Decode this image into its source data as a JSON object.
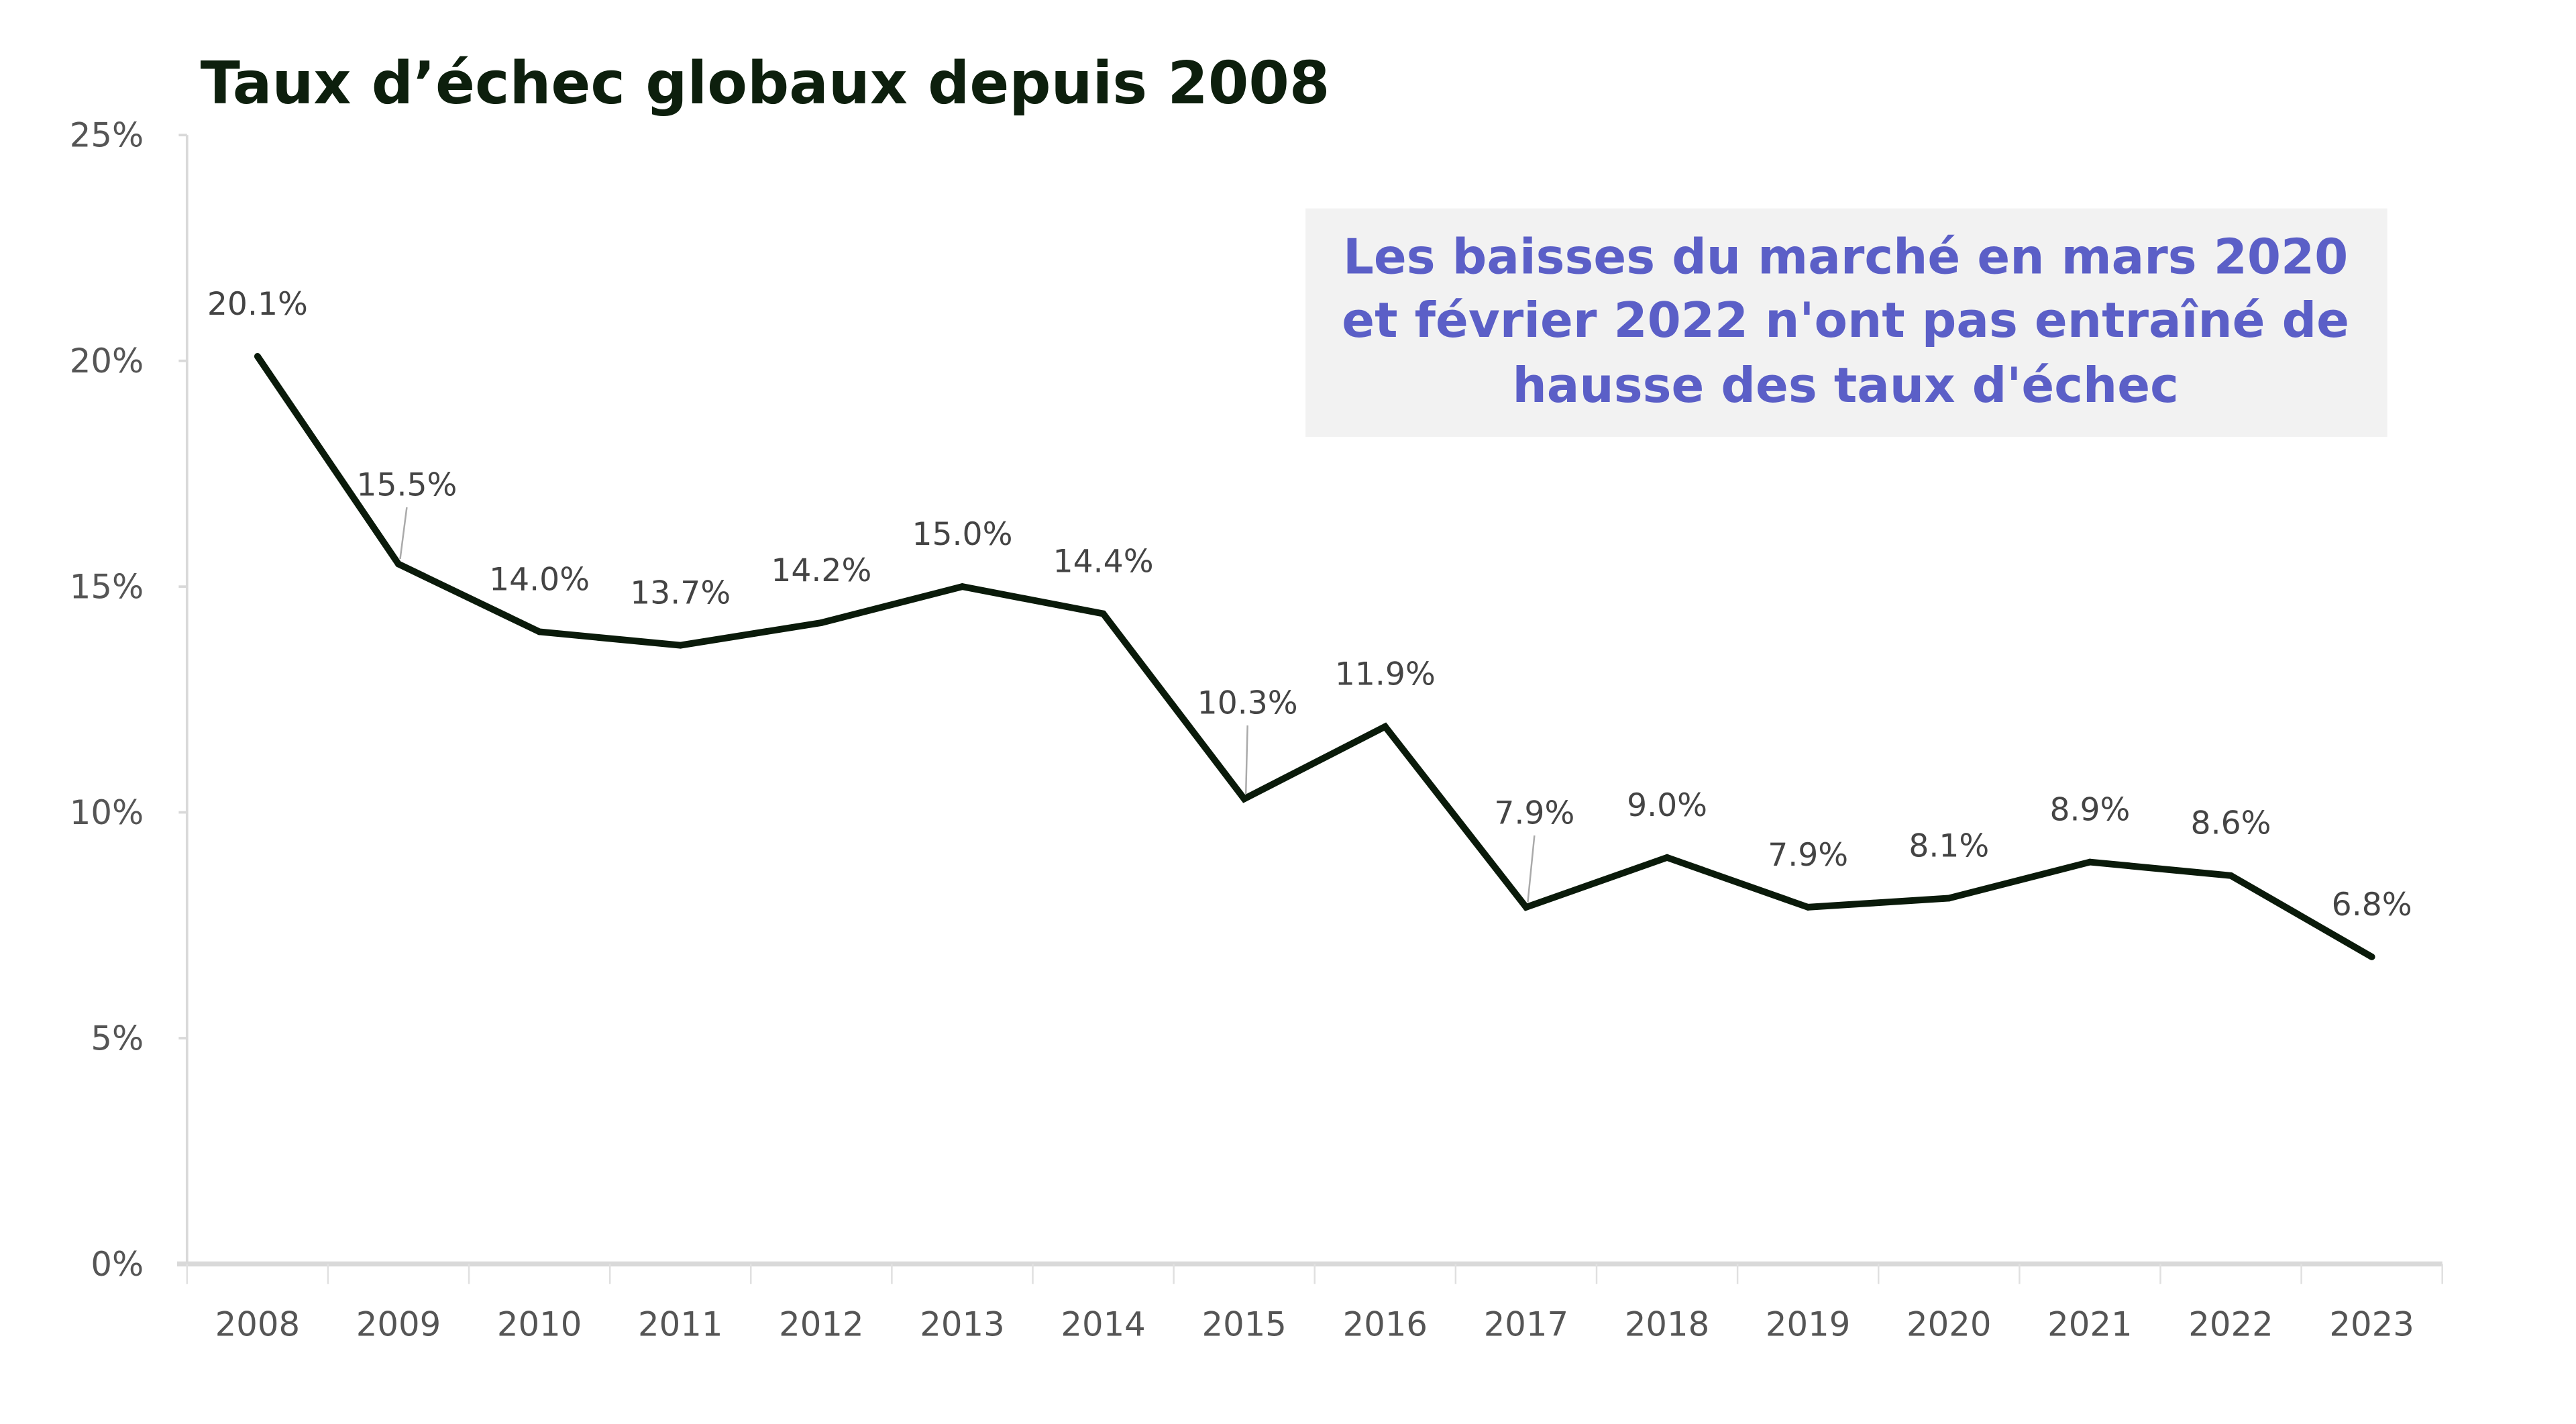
{
  "chart_data": {
    "type": "line",
    "title": "Taux d’échec globaux depuis 2008",
    "xlabel": "",
    "ylabel": "",
    "categories": [
      "2008",
      "2009",
      "2010",
      "2011",
      "2012",
      "2013",
      "2014",
      "2015",
      "2016",
      "2017",
      "2018",
      "2019",
      "2020",
      "2021",
      "2022",
      "2023"
    ],
    "series": [
      {
        "name": "Taux d'échec",
        "values": [
          20.1,
          15.5,
          14.0,
          13.7,
          14.2,
          15.0,
          14.4,
          10.3,
          11.9,
          7.9,
          9.0,
          7.9,
          8.1,
          8.9,
          8.6,
          6.8
        ]
      }
    ],
    "data_labels": [
      "20.1%",
      "15.5%",
      "14.0%",
      "13.7%",
      "14.2%",
      "15.0%",
      "14.4%",
      "10.3%",
      "11.9%",
      "7.9%",
      "9.0%",
      "7.9%",
      "8.1%",
      "8.9%",
      "8.6%",
      "6.8%"
    ],
    "ylim": [
      0,
      25
    ],
    "yticks": [
      0,
      5,
      10,
      15,
      20,
      25
    ],
    "ytick_labels": [
      "0%",
      "5%",
      "10%",
      "15%",
      "20%",
      "25%"
    ],
    "grid": false,
    "annotation": {
      "lines": [
        "Les baisses du marché en mars 2020",
        "et février 2022 n'ont pas entraîné de",
        "hausse des taux d'échec"
      ]
    },
    "colors": {
      "line": "#0a1a0a",
      "annotation_text": "#5b5fc7",
      "annotation_bg": "#f2f2f2",
      "axis": "#d9d9d9"
    }
  }
}
